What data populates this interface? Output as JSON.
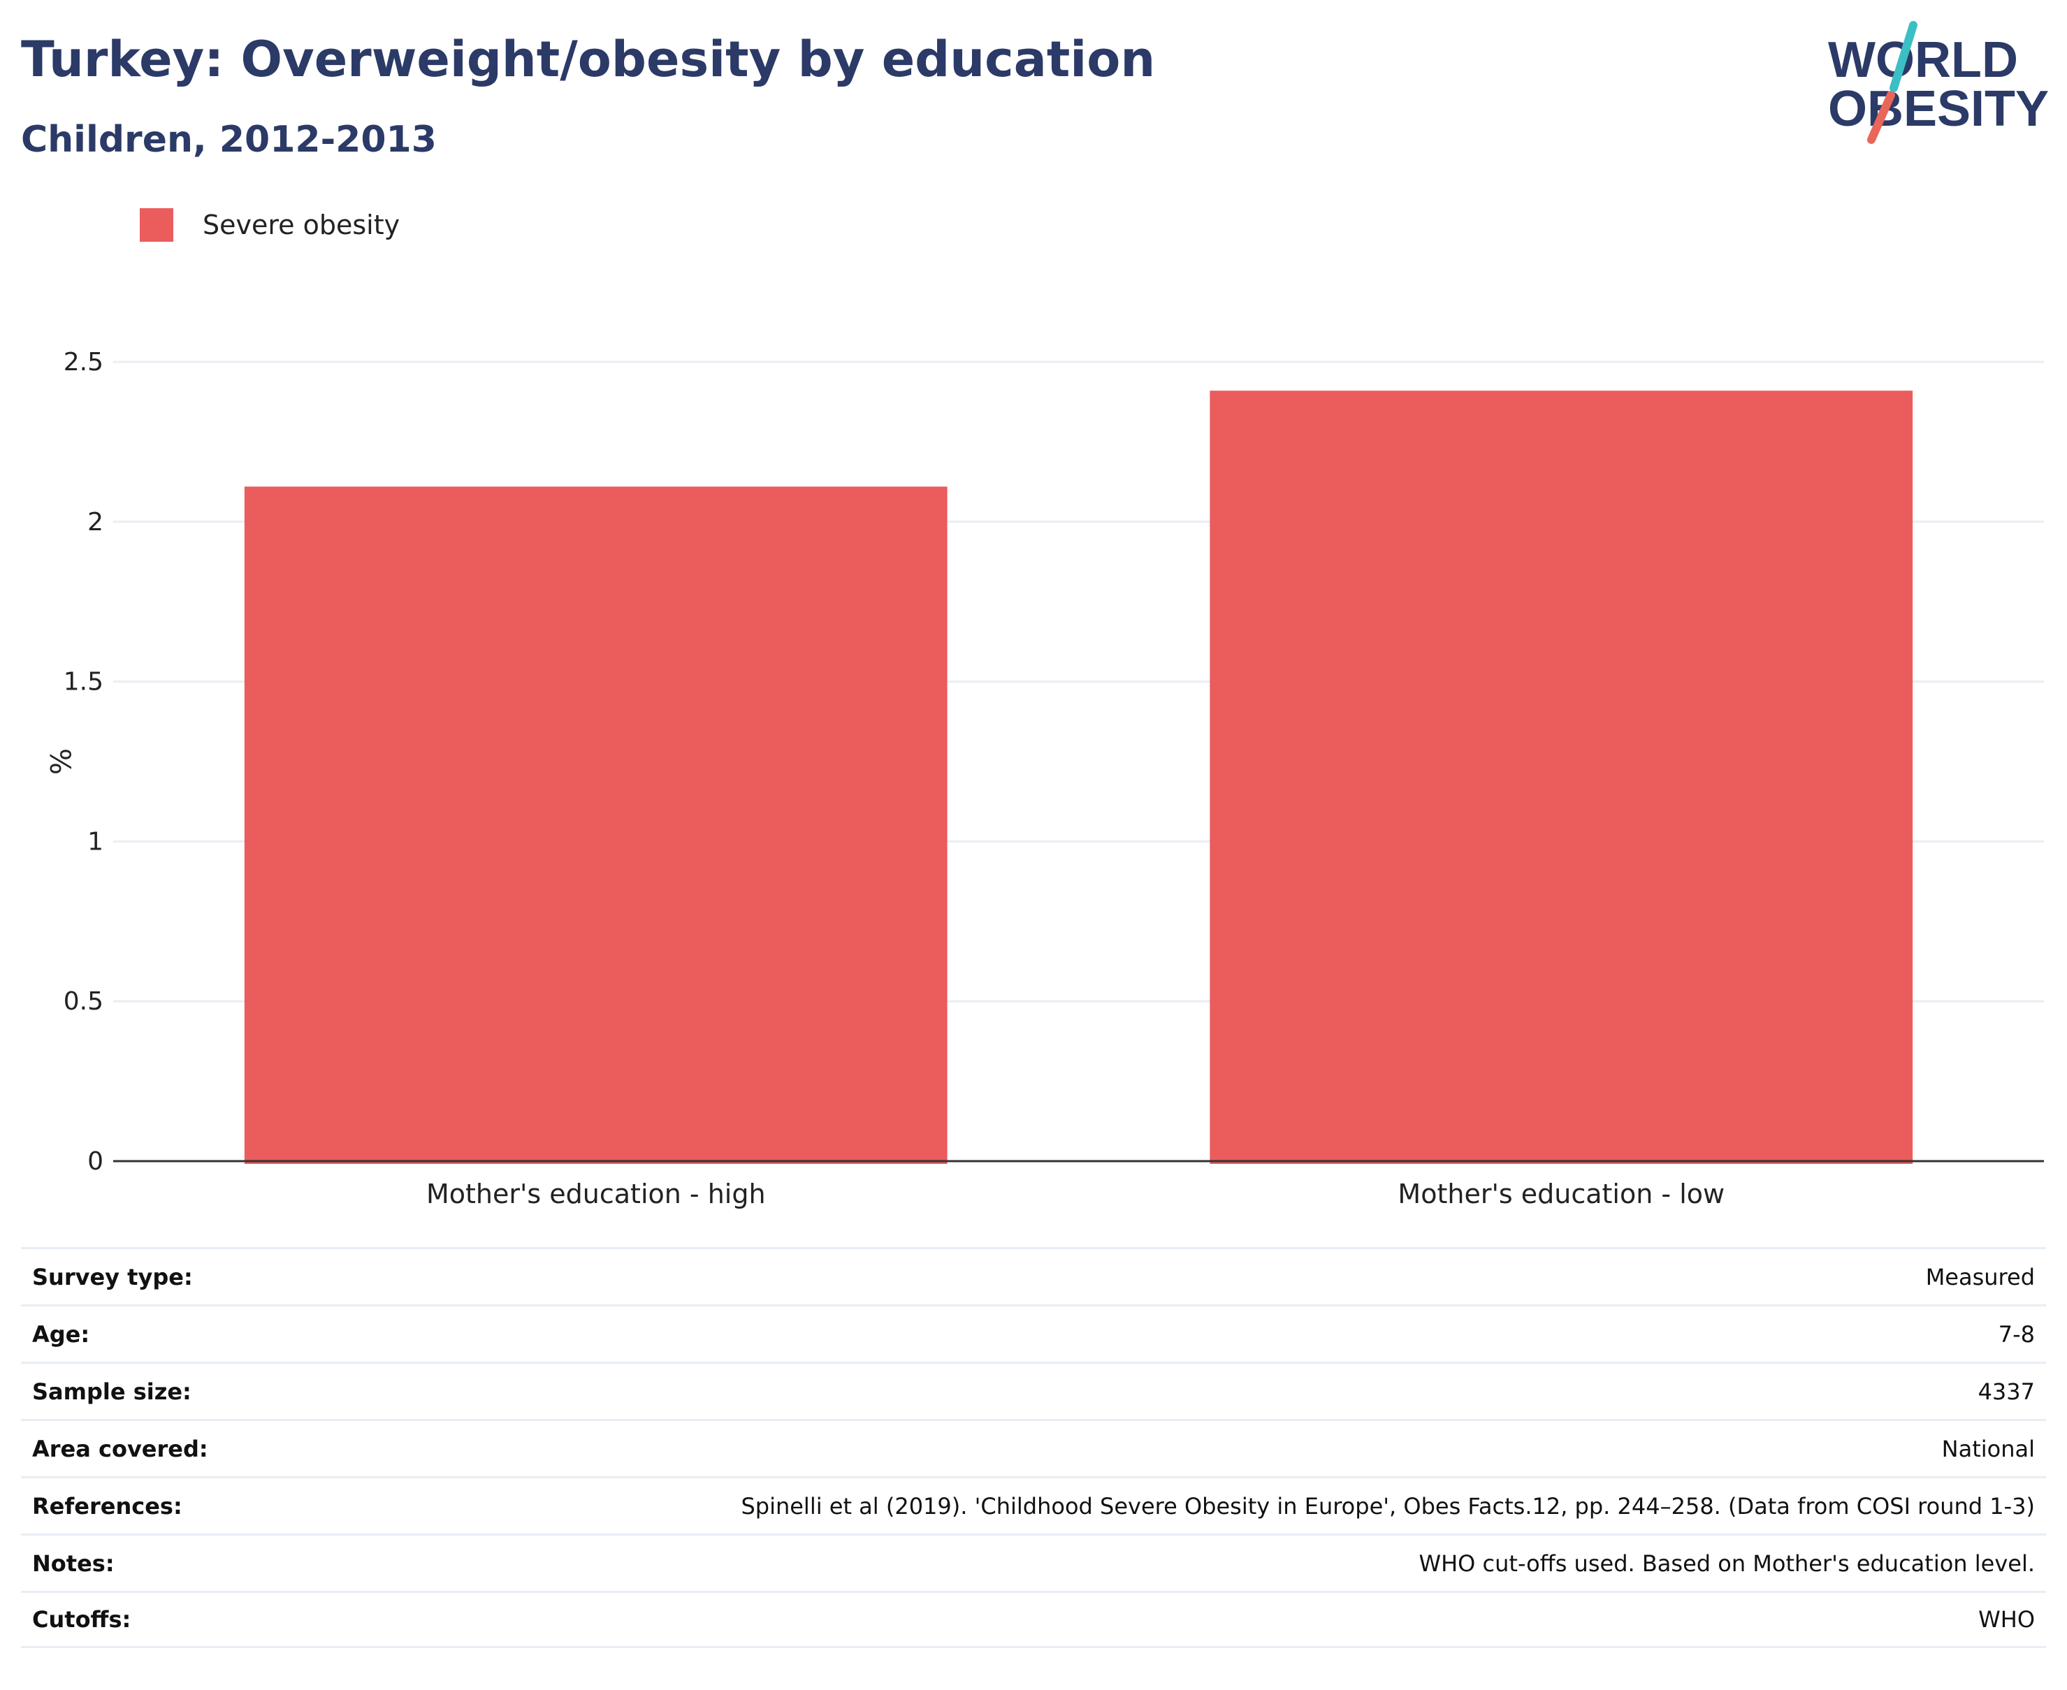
{
  "header": {
    "title": "Turkey: Overweight/obesity by education",
    "subtitle": "Children, 2012-2013"
  },
  "logo": {
    "line1": "WORLD",
    "line2": "OBESITY"
  },
  "colors": {
    "bar": "#eb5c5c",
    "title": "#2b3a67",
    "grid": "#e8eef5",
    "logo_teal": "#3bbfc4",
    "logo_coral": "#e8675a"
  },
  "chart_data": {
    "type": "bar",
    "categories": [
      "Mother's education - high",
      "Mother's education - low"
    ],
    "series": [
      {
        "name": "Severe obesity",
        "values": [
          2.11,
          2.41
        ]
      }
    ],
    "ylabel": "%",
    "ylim": [
      0,
      2.5
    ],
    "yticks": [
      0,
      0.5,
      1,
      1.5,
      2,
      2.5
    ],
    "ytick_labels": [
      "0",
      "0.5",
      "1",
      "1.5",
      "2",
      "2.5"
    ],
    "grid": true,
    "legend": "top-left"
  },
  "meta": {
    "rows": [
      {
        "label": "Survey type:",
        "value": "Measured"
      },
      {
        "label": "Age:",
        "value": "7-8"
      },
      {
        "label": "Sample size:",
        "value": "4337"
      },
      {
        "label": "Area covered:",
        "value": "National"
      },
      {
        "label": "References:",
        "value": "Spinelli et al (2019). 'Childhood Severe Obesity in Europe', Obes Facts.12, pp. 244–258. (Data from COSI round 1-3)"
      },
      {
        "label": "Notes:",
        "value": "WHO cut-offs used. Based on Mother's education level."
      },
      {
        "label": "Cutoffs:",
        "value": "WHO"
      }
    ]
  }
}
